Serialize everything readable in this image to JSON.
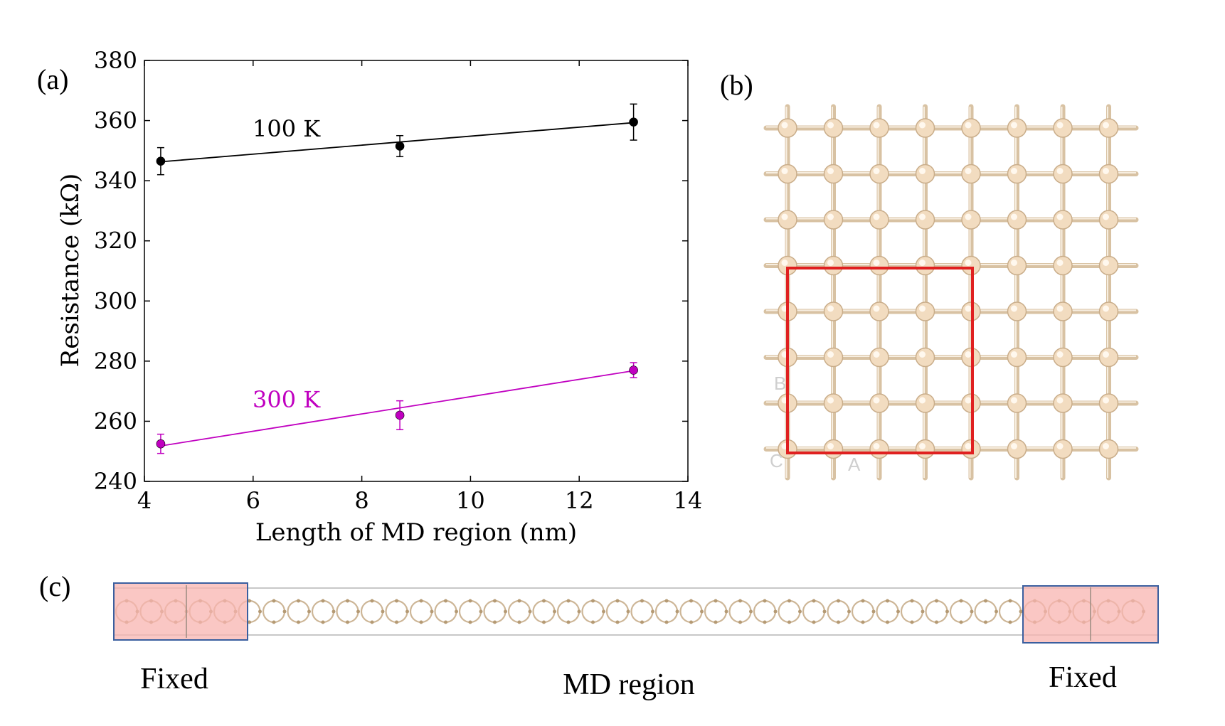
{
  "colors": {
    "series_100K": "#000000",
    "series_300K": "#c000c0",
    "atom": "#f2dcc0",
    "bond": "#d8c2a3",
    "highlight": "#e02020",
    "fixed_fill": "#f8b4b0",
    "fixed_border": "#3a5f9f"
  },
  "panels": {
    "a_label": "(a)",
    "b_label": "(b)",
    "c_label": "(c)"
  },
  "chart_data": {
    "type": "scatter",
    "title": "",
    "xlabel": "Length of MD region  (nm)",
    "ylabel": "Resistance  (kΩ)",
    "xlim": [
      4,
      14
    ],
    "ylim": [
      240,
      380
    ],
    "xticks": [
      4,
      6,
      8,
      10,
      12,
      14
    ],
    "yticks": [
      240,
      260,
      280,
      300,
      320,
      340,
      360,
      380
    ],
    "series": [
      {
        "name": "100 K",
        "x": [
          4.3,
          8.7,
          13.0
        ],
        "y": [
          346.5,
          351.5,
          359.5
        ],
        "yerr": [
          4.5,
          3.5,
          6.0
        ],
        "fit": [
          [
            4.3,
            346.3
          ],
          [
            13.0,
            359.3
          ]
        ]
      },
      {
        "name": "300 K",
        "x": [
          4.3,
          8.7,
          13.0
        ],
        "y": [
          252.5,
          262.0,
          277.0
        ],
        "yerr": [
          3.2,
          4.8,
          2.5
        ],
        "fit": [
          [
            4.3,
            251.8
          ],
          [
            13.0,
            276.8
          ]
        ]
      }
    ]
  },
  "structure_c": {
    "left_label": "Fixed",
    "center_label": "MD region",
    "right_label": "Fixed"
  }
}
